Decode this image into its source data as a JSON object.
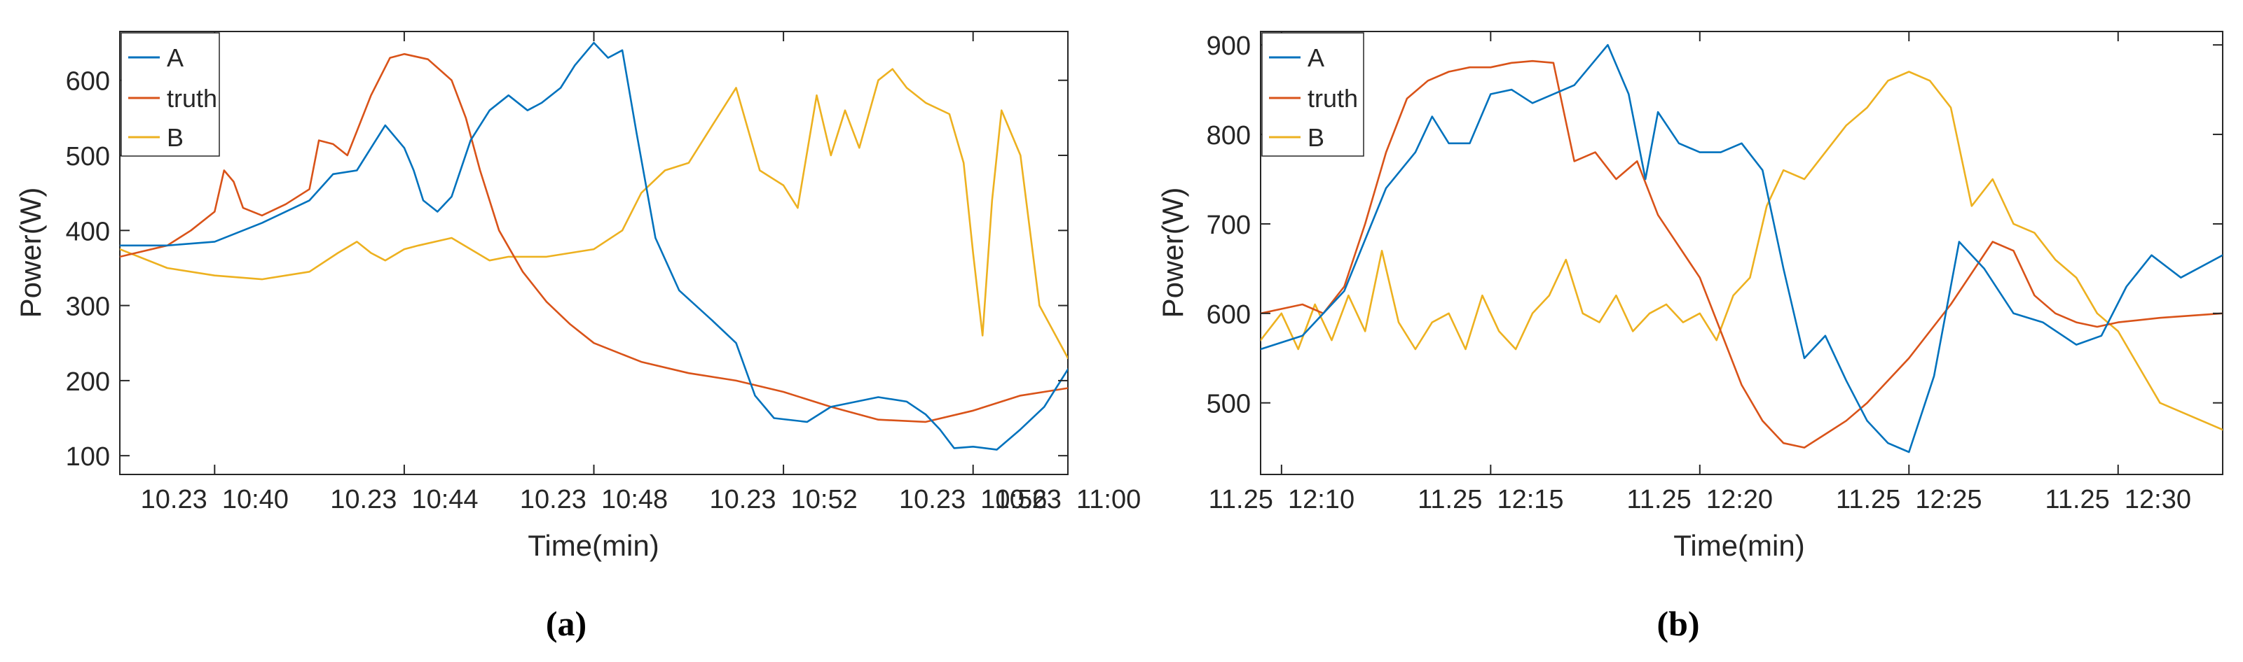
{
  "figure": {
    "panel_labels": [
      "(a)",
      "(b)"
    ]
  },
  "chart_data": [
    {
      "type": "line",
      "xlabel": "Time(min)",
      "ylabel": "Power(W)",
      "xlim": [
        0,
        20
      ],
      "ylim": [
        75,
        665
      ],
      "yticks": [
        100,
        200,
        300,
        400,
        500,
        600
      ],
      "xticks": [
        {
          "value": 2,
          "label": "10.23  10:40"
        },
        {
          "value": 6,
          "label": "10.23  10:44"
        },
        {
          "value": 10,
          "label": "10.23  10:48"
        },
        {
          "value": 14,
          "label": "10.23  10:52"
        },
        {
          "value": 18,
          "label": "10.23  10:56"
        },
        {
          "value": 20,
          "label": "10.23  11:00"
        }
      ],
      "x_unit": "minutes after 10.23 10:38",
      "legend": {
        "position": "top-left",
        "entries": [
          "A",
          "truth",
          "B"
        ]
      },
      "colors": {
        "A": "#0072BD",
        "truth": "#D95319",
        "B": "#EDB120"
      },
      "series": [
        {
          "name": "A",
          "x": [
            0,
            1,
            2,
            3,
            4,
            4.5,
            5,
            5.3,
            5.6,
            6,
            6.2,
            6.4,
            6.7,
            7,
            7.4,
            7.8,
            8.2,
            8.6,
            8.9,
            9.3,
            9.6,
            10,
            10.3,
            10.6,
            10.9,
            11.3,
            11.8,
            12.5,
            13,
            13.4,
            13.8,
            14.5,
            15,
            16,
            16.6,
            17,
            17.3,
            17.6,
            18,
            18.5,
            19,
            19.5,
            20
          ],
          "y": [
            380,
            380,
            385,
            410,
            440,
            475,
            480,
            510,
            540,
            510,
            480,
            440,
            425,
            445,
            520,
            560,
            580,
            560,
            570,
            590,
            620,
            650,
            630,
            640,
            530,
            390,
            320,
            280,
            250,
            180,
            150,
            145,
            165,
            178,
            172,
            155,
            135,
            110,
            112,
            108,
            135,
            165,
            215
          ]
        },
        {
          "name": "truth",
          "x": [
            0,
            1,
            1.5,
            2,
            2.2,
            2.4,
            2.6,
            3,
            3.5,
            4,
            4.2,
            4.5,
            4.8,
            5.3,
            5.7,
            6,
            6.5,
            7,
            7.3,
            7.6,
            8,
            8.5,
            9,
            9.5,
            10,
            11,
            12,
            13,
            14,
            15,
            16,
            17,
            18,
            19,
            20
          ],
          "y": [
            365,
            380,
            400,
            425,
            480,
            465,
            430,
            420,
            435,
            455,
            520,
            515,
            500,
            580,
            630,
            635,
            628,
            600,
            550,
            480,
            400,
            345,
            305,
            275,
            250,
            225,
            210,
            200,
            185,
            165,
            148,
            145,
            160,
            180,
            190
          ]
        },
        {
          "name": "B",
          "x": [
            0,
            1,
            2,
            3,
            4,
            4.6,
            5,
            5.3,
            5.6,
            6,
            6.3,
            7,
            7.4,
            7.8,
            8.2,
            9,
            10,
            10.6,
            11,
            11.5,
            12,
            12.5,
            13,
            13.5,
            14,
            14.3,
            14.7,
            15,
            15.3,
            15.6,
            16,
            16.3,
            16.6,
            17,
            17.5,
            17.8,
            18,
            18.2,
            18.4,
            18.6,
            19,
            19.4,
            20
          ],
          "y": [
            375,
            350,
            340,
            335,
            345,
            370,
            385,
            370,
            360,
            375,
            380,
            390,
            375,
            360,
            365,
            365,
            375,
            400,
            450,
            480,
            490,
            540,
            590,
            480,
            460,
            430,
            580,
            500,
            560,
            510,
            600,
            615,
            590,
            570,
            555,
            490,
            370,
            260,
            440,
            560,
            500,
            300,
            230
          ]
        }
      ]
    },
    {
      "type": "line",
      "xlabel": "Time(min)",
      "ylabel": "Power(W)",
      "xlim": [
        -0.5,
        22.5
      ],
      "ylim": [
        420,
        915
      ],
      "yticks": [
        500,
        600,
        700,
        800,
        900
      ],
      "xticks": [
        {
          "value": 0,
          "label": "11.25  12:10"
        },
        {
          "value": 5,
          "label": "11.25  12:15"
        },
        {
          "value": 10,
          "label": "11.25  12:20"
        },
        {
          "value": 15,
          "label": "11.25  12:25"
        },
        {
          "value": 20,
          "label": "11.25  12:30"
        }
      ],
      "x_unit": "minutes after 11.25 12:10",
      "legend": {
        "position": "top-left",
        "entries": [
          "A",
          "truth",
          "B"
        ]
      },
      "colors": {
        "A": "#0072BD",
        "truth": "#D95319",
        "B": "#EDB120"
      },
      "series": [
        {
          "name": "A",
          "x": [
            -0.5,
            0.5,
            1.5,
            2.5,
            3.2,
            3.6,
            4,
            4.5,
            5,
            5.5,
            6,
            7,
            7.8,
            8.3,
            8.7,
            9,
            9.5,
            10,
            10.5,
            11,
            11.5,
            12,
            12.5,
            13,
            13.5,
            14,
            14.5,
            15,
            15.6,
            16.2,
            16.8,
            17.5,
            18.2,
            19,
            19.6,
            20.2,
            20.8,
            21.5,
            22.5
          ],
          "y": [
            560,
            575,
            625,
            740,
            780,
            820,
            790,
            790,
            845,
            850,
            835,
            855,
            900,
            845,
            750,
            825,
            790,
            780,
            780,
            790,
            760,
            650,
            550,
            575,
            525,
            480,
            455,
            445,
            530,
            680,
            650,
            600,
            590,
            565,
            575,
            630,
            665,
            640,
            665
          ]
        },
        {
          "name": "truth",
          "x": [
            -0.5,
            0.5,
            1,
            1.5,
            2,
            2.5,
            3,
            3.5,
            4,
            4.5,
            5,
            5.5,
            6,
            6.5,
            7,
            7.5,
            8,
            8.5,
            9,
            10,
            10.5,
            11,
            11.5,
            12,
            12.5,
            13,
            13.5,
            14,
            15,
            16,
            17,
            17.5,
            18,
            18.5,
            19,
            19.5,
            20,
            21,
            22.5
          ],
          "y": [
            600,
            610,
            600,
            630,
            700,
            780,
            840,
            860,
            870,
            875,
            875,
            880,
            882,
            880,
            770,
            780,
            750,
            770,
            710,
            640,
            580,
            520,
            480,
            455,
            450,
            465,
            480,
            500,
            550,
            610,
            680,
            670,
            620,
            600,
            590,
            585,
            590,
            595,
            600
          ]
        },
        {
          "name": "B",
          "x": [
            -0.5,
            0,
            0.4,
            0.8,
            1.2,
            1.6,
            2,
            2.4,
            2.8,
            3.2,
            3.6,
            4,
            4.4,
            4.8,
            5.2,
            5.6,
            6,
            6.4,
            6.8,
            7.2,
            7.6,
            8,
            8.4,
            8.8,
            9.2,
            9.6,
            10,
            10.4,
            10.8,
            11.2,
            11.6,
            12,
            12.5,
            13,
            13.5,
            14,
            14.5,
            15,
            15.5,
            16,
            16.5,
            17,
            17.5,
            18,
            18.5,
            19,
            19.5,
            20,
            20.5,
            21,
            22.5
          ],
          "y": [
            570,
            600,
            560,
            610,
            570,
            620,
            580,
            670,
            590,
            560,
            590,
            600,
            560,
            620,
            580,
            560,
            600,
            620,
            660,
            600,
            590,
            620,
            580,
            600,
            610,
            590,
            600,
            570,
            620,
            640,
            720,
            760,
            750,
            780,
            810,
            830,
            860,
            870,
            860,
            830,
            720,
            750,
            700,
            690,
            660,
            640,
            600,
            580,
            540,
            500,
            470
          ]
        }
      ]
    }
  ]
}
